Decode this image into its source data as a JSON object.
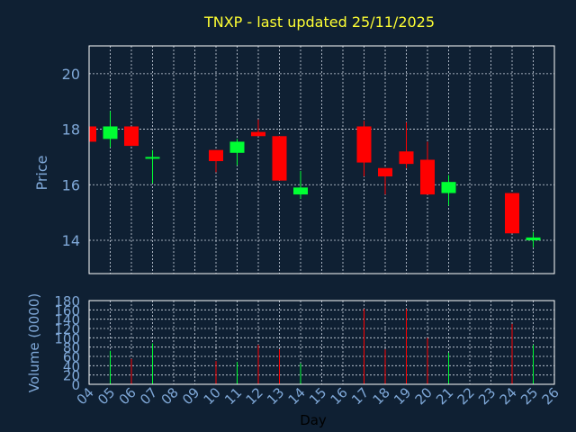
{
  "chart_data": {
    "type": "candlestick",
    "title": "TNXP - last updated 25/11/2025",
    "xlabel": "Day",
    "price_panel": {
      "ylabel": "Price",
      "ylim": [
        12.8,
        21
      ],
      "yticks": [
        14,
        16,
        18,
        20
      ]
    },
    "volume_panel": {
      "ylabel": "Volume (0000)",
      "ylim": [
        0,
        180
      ],
      "yticks": [
        0,
        20,
        40,
        60,
        80,
        100,
        120,
        140,
        160,
        180
      ]
    },
    "x_ticks": [
      "04",
      "05",
      "06",
      "07",
      "08",
      "09",
      "10",
      "11",
      "12",
      "13",
      "14",
      "15",
      "16",
      "17",
      "18",
      "19",
      "20",
      "21",
      "22",
      "23",
      "24",
      "25",
      "26"
    ],
    "grid": true,
    "colors": {
      "background": "#0f2033",
      "plot_border": "#ffffff",
      "grid": "#cfd8e3",
      "up": "#00ff33",
      "down": "#ff0000",
      "title": "#ffff33",
      "axis_label": "#7fa8d8",
      "tick_label": "#7fa8d8",
      "day_label": "#000000"
    },
    "candles": [
      {
        "day": 4,
        "open": 18.1,
        "close": 17.55,
        "high": 18.1,
        "low": 17.55,
        "volume": 0
      },
      {
        "day": 5,
        "open": 17.65,
        "close": 18.1,
        "high": 18.65,
        "low": 17.35,
        "volume": 72
      },
      {
        "day": 6,
        "open": 18.1,
        "close": 17.4,
        "high": 18.1,
        "low": 17.4,
        "volume": 55
      },
      {
        "day": 7,
        "open": 16.95,
        "close": 17.0,
        "high": 17.25,
        "low": 16.05,
        "volume": 88
      },
      {
        "day": 10,
        "open": 17.25,
        "close": 16.85,
        "high": 17.25,
        "low": 16.45,
        "volume": 50
      },
      {
        "day": 11,
        "open": 17.15,
        "close": 17.55,
        "high": 17.65,
        "low": 16.7,
        "volume": 48
      },
      {
        "day": 12,
        "open": 17.9,
        "close": 17.75,
        "high": 18.35,
        "low": 17.75,
        "volume": 85
      },
      {
        "day": 13,
        "open": 17.75,
        "close": 16.15,
        "high": 17.75,
        "low": 16.15,
        "volume": 75
      },
      {
        "day": 14,
        "open": 15.65,
        "close": 15.9,
        "high": 16.5,
        "low": 15.5,
        "volume": 45
      },
      {
        "day": 17,
        "open": 18.1,
        "close": 16.8,
        "high": 18.3,
        "low": 16.3,
        "volume": 162
      },
      {
        "day": 18,
        "open": 16.6,
        "close": 16.3,
        "high": 16.6,
        "low": 15.65,
        "volume": 75
      },
      {
        "day": 19,
        "open": 17.2,
        "close": 16.75,
        "high": 18.25,
        "low": 16.6,
        "volume": 162
      },
      {
        "day": 20,
        "open": 16.9,
        "close": 15.65,
        "high": 17.55,
        "low": 15.65,
        "volume": 100
      },
      {
        "day": 21,
        "open": 15.7,
        "close": 16.1,
        "high": 16.35,
        "low": 15.25,
        "volume": 68
      },
      {
        "day": 24,
        "open": 15.7,
        "close": 14.25,
        "high": 15.7,
        "low": 14.25,
        "volume": 130
      },
      {
        "day": 25,
        "open": 14.0,
        "close": 14.1,
        "high": 14.3,
        "low": 13.75,
        "volume": 85
      }
    ]
  }
}
